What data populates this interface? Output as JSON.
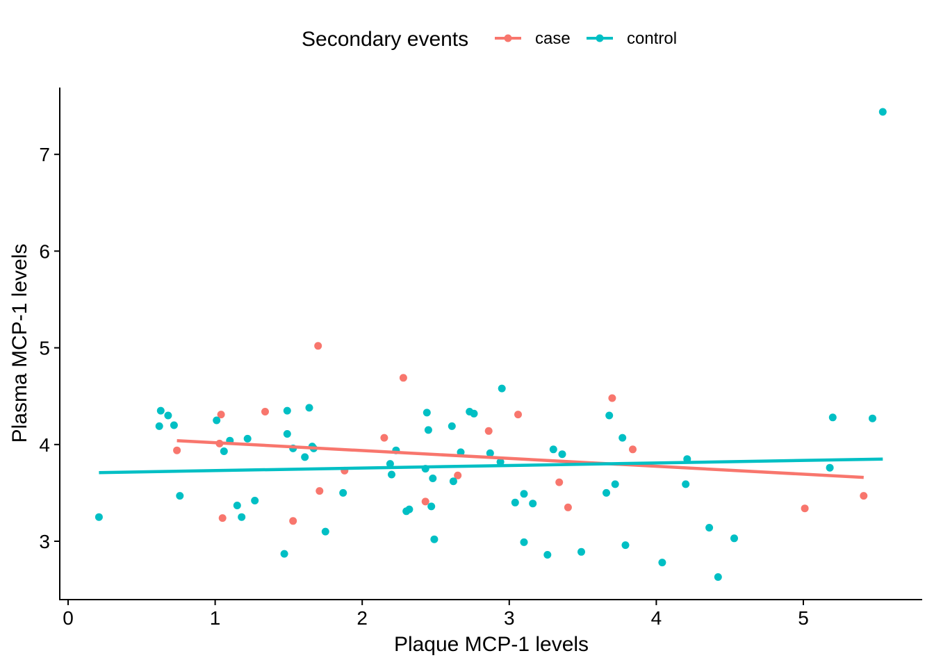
{
  "chart_data": {
    "type": "scatter",
    "title": "",
    "xlabel": "Plaque MCP-1 levels",
    "ylabel": "Plasma MCP-1 levels",
    "xlim": [
      -0.05,
      5.8
    ],
    "ylim": [
      2.4,
      7.7
    ],
    "x_ticks": [
      0,
      1,
      2,
      3,
      4,
      5
    ],
    "y_ticks": [
      3,
      4,
      5,
      6,
      7
    ],
    "grid": false,
    "legend": {
      "title": "Secondary events",
      "position": "top"
    },
    "series": [
      {
        "name": "case",
        "color": "#F8766D",
        "points": [
          [
            0.74,
            3.94
          ],
          [
            1.03,
            4.01
          ],
          [
            1.04,
            4.31
          ],
          [
            1.05,
            3.24
          ],
          [
            1.34,
            4.34
          ],
          [
            1.53,
            3.21
          ],
          [
            1.7,
            5.02
          ],
          [
            1.71,
            3.52
          ],
          [
            1.88,
            3.73
          ],
          [
            2.15,
            4.07
          ],
          [
            2.28,
            4.69
          ],
          [
            2.43,
            3.41
          ],
          [
            2.65,
            3.68
          ],
          [
            2.86,
            4.14
          ],
          [
            3.06,
            4.31
          ],
          [
            3.34,
            3.61
          ],
          [
            3.4,
            3.35
          ],
          [
            3.7,
            4.48
          ],
          [
            3.84,
            3.95
          ],
          [
            5.01,
            3.34
          ],
          [
            5.41,
            3.47
          ]
        ],
        "trend": {
          "x": [
            0.74,
            5.41
          ],
          "y": [
            4.04,
            3.66
          ]
        }
      },
      {
        "name": "control",
        "color": "#00BFC4",
        "points": [
          [
            0.21,
            3.25
          ],
          [
            0.62,
            4.19
          ],
          [
            0.63,
            4.35
          ],
          [
            0.68,
            4.3
          ],
          [
            0.72,
            4.2
          ],
          [
            0.76,
            3.47
          ],
          [
            1.01,
            4.25
          ],
          [
            1.06,
            3.93
          ],
          [
            1.1,
            4.04
          ],
          [
            1.15,
            3.37
          ],
          [
            1.18,
            3.25
          ],
          [
            1.22,
            4.06
          ],
          [
            1.27,
            3.42
          ],
          [
            1.47,
            2.87
          ],
          [
            1.49,
            4.11
          ],
          [
            1.49,
            4.35
          ],
          [
            1.53,
            3.96
          ],
          [
            1.61,
            3.87
          ],
          [
            1.64,
            4.38
          ],
          [
            1.66,
            3.98
          ],
          [
            1.67,
            3.96
          ],
          [
            1.75,
            3.1
          ],
          [
            1.87,
            3.5
          ],
          [
            2.19,
            3.8
          ],
          [
            2.2,
            3.69
          ],
          [
            2.23,
            3.94
          ],
          [
            2.3,
            3.31
          ],
          [
            2.32,
            3.33
          ],
          [
            2.43,
            3.75
          ],
          [
            2.44,
            4.33
          ],
          [
            2.45,
            4.15
          ],
          [
            2.47,
            3.36
          ],
          [
            2.48,
            3.65
          ],
          [
            2.49,
            3.02
          ],
          [
            2.61,
            4.19
          ],
          [
            2.62,
            3.62
          ],
          [
            2.67,
            3.92
          ],
          [
            2.73,
            4.34
          ],
          [
            2.76,
            4.32
          ],
          [
            2.87,
            3.91
          ],
          [
            2.94,
            3.82
          ],
          [
            2.95,
            4.58
          ],
          [
            3.04,
            3.4
          ],
          [
            3.1,
            2.99
          ],
          [
            3.1,
            3.49
          ],
          [
            3.16,
            3.39
          ],
          [
            3.26,
            2.86
          ],
          [
            3.3,
            3.95
          ],
          [
            3.36,
            3.9
          ],
          [
            3.49,
            2.89
          ],
          [
            3.66,
            3.5
          ],
          [
            3.68,
            4.3
          ],
          [
            3.72,
            3.59
          ],
          [
            3.77,
            4.07
          ],
          [
            3.79,
            2.96
          ],
          [
            4.04,
            2.78
          ],
          [
            4.2,
            3.59
          ],
          [
            4.21,
            3.85
          ],
          [
            4.36,
            3.14
          ],
          [
            4.42,
            2.63
          ],
          [
            4.53,
            3.03
          ],
          [
            5.18,
            3.76
          ],
          [
            5.2,
            4.28
          ],
          [
            5.47,
            4.27
          ],
          [
            5.54,
            7.44
          ]
        ],
        "trend": {
          "x": [
            0.21,
            5.54
          ],
          "y": [
            3.71,
            3.85
          ]
        }
      }
    ]
  }
}
